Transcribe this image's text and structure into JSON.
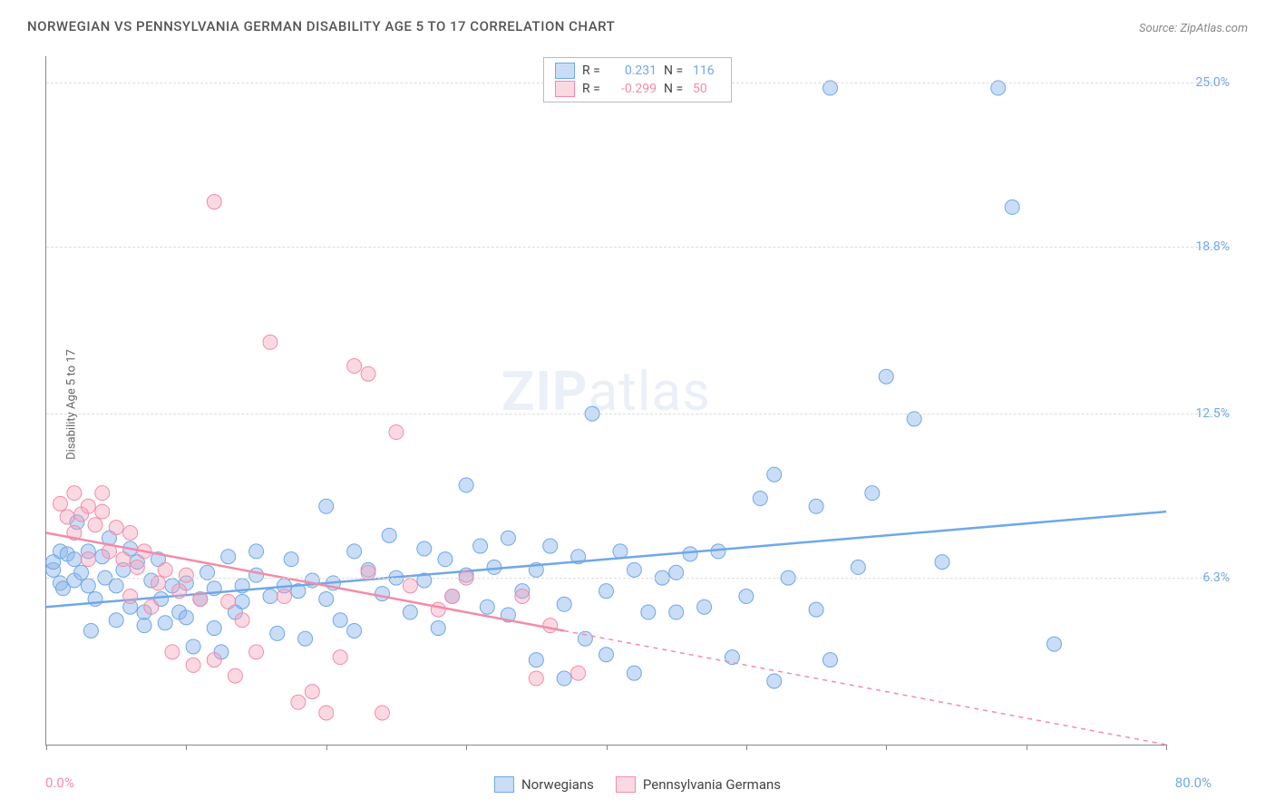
{
  "title": "NORWEGIAN VS PENNSYLVANIA GERMAN DISABILITY AGE 5 TO 17 CORRELATION CHART",
  "source_label": "Source:",
  "source_site": "ZipAtlas.com",
  "ylabel": "Disability Age 5 to 17",
  "watermark_bold": "ZIP",
  "watermark_rest": "atlas",
  "chart": {
    "type": "scatter",
    "background_color": "#ffffff",
    "grid_color": "#dddddd",
    "axis_color": "#888888",
    "xlim": [
      0,
      80
    ],
    "ylim": [
      0,
      26
    ],
    "xaxis_min_label": "0.0%",
    "xaxis_max_label": "80.0%",
    "xaxis_min_color": "#f48ba8",
    "xaxis_max_color": "#6fa8e8",
    "xticks": [
      0,
      10,
      20,
      30,
      40,
      50,
      60,
      70,
      80
    ],
    "yticks": [
      {
        "v": 6.3,
        "label": "6.3%"
      },
      {
        "v": 12.5,
        "label": "12.5%"
      },
      {
        "v": 18.8,
        "label": "18.8%"
      },
      {
        "v": 25.0,
        "label": "25.0%"
      }
    ],
    "ytick_color": "#6fa8e8",
    "series": [
      {
        "name": "Norwegians",
        "color_fill": "rgba(137,180,235,0.45)",
        "color_stroke": "#6fa8e8",
        "marker_radius": 8,
        "r_value": "0.231",
        "n_value": "116",
        "trend": {
          "x1": 0,
          "y1": 5.2,
          "x2": 80,
          "y2": 8.8,
          "solid_until_x": 80
        },
        "points": [
          {
            "x": 0.5,
            "y": 6.6
          },
          {
            "x": 0.5,
            "y": 6.9
          },
          {
            "x": 1,
            "y": 7.3
          },
          {
            "x": 1,
            "y": 6.1
          },
          {
            "x": 1.2,
            "y": 5.9
          },
          {
            "x": 1.5,
            "y": 7.2
          },
          {
            "x": 2,
            "y": 7.0
          },
          {
            "x": 2,
            "y": 6.2
          },
          {
            "x": 2.2,
            "y": 8.4
          },
          {
            "x": 2.5,
            "y": 6.5
          },
          {
            "x": 3,
            "y": 7.3
          },
          {
            "x": 3,
            "y": 6.0
          },
          {
            "x": 3.2,
            "y": 4.3
          },
          {
            "x": 3.5,
            "y": 5.5
          },
          {
            "x": 4,
            "y": 7.1
          },
          {
            "x": 4.2,
            "y": 6.3
          },
          {
            "x": 4.5,
            "y": 7.8
          },
          {
            "x": 5,
            "y": 6.0
          },
          {
            "x": 5,
            "y": 4.7
          },
          {
            "x": 5.5,
            "y": 6.6
          },
          {
            "x": 6,
            "y": 7.4
          },
          {
            "x": 6,
            "y": 5.2
          },
          {
            "x": 6.5,
            "y": 6.9
          },
          {
            "x": 7,
            "y": 4.5
          },
          {
            "x": 7,
            "y": 5.0
          },
          {
            "x": 7.5,
            "y": 6.2
          },
          {
            "x": 8,
            "y": 7.0
          },
          {
            "x": 8.2,
            "y": 5.5
          },
          {
            "x": 8.5,
            "y": 4.6
          },
          {
            "x": 9,
            "y": 6.0
          },
          {
            "x": 9.5,
            "y": 5.0
          },
          {
            "x": 10,
            "y": 6.1
          },
          {
            "x": 10,
            "y": 4.8
          },
          {
            "x": 10.5,
            "y": 3.7
          },
          {
            "x": 11,
            "y": 5.5
          },
          {
            "x": 11.5,
            "y": 6.5
          },
          {
            "x": 12,
            "y": 4.4
          },
          {
            "x": 12,
            "y": 5.9
          },
          {
            "x": 12.5,
            "y": 3.5
          },
          {
            "x": 13,
            "y": 7.1
          },
          {
            "x": 13.5,
            "y": 5.0
          },
          {
            "x": 14,
            "y": 6.0
          },
          {
            "x": 14,
            "y": 5.4
          },
          {
            "x": 15,
            "y": 6.4
          },
          {
            "x": 15,
            "y": 7.3
          },
          {
            "x": 16,
            "y": 5.6
          },
          {
            "x": 16.5,
            "y": 4.2
          },
          {
            "x": 17,
            "y": 6.0
          },
          {
            "x": 17.5,
            "y": 7.0
          },
          {
            "x": 18,
            "y": 5.8
          },
          {
            "x": 18.5,
            "y": 4.0
          },
          {
            "x": 19,
            "y": 6.2
          },
          {
            "x": 20,
            "y": 5.5
          },
          {
            "x": 20,
            "y": 9.0
          },
          {
            "x": 20.5,
            "y": 6.1
          },
          {
            "x": 21,
            "y": 4.7
          },
          {
            "x": 22,
            "y": 7.3
          },
          {
            "x": 22,
            "y": 4.3
          },
          {
            "x": 23,
            "y": 6.6
          },
          {
            "x": 24,
            "y": 5.7
          },
          {
            "x": 24.5,
            "y": 7.9
          },
          {
            "x": 25,
            "y": 6.3
          },
          {
            "x": 26,
            "y": 5.0
          },
          {
            "x": 27,
            "y": 6.2
          },
          {
            "x": 27,
            "y": 7.4
          },
          {
            "x": 28,
            "y": 4.4
          },
          {
            "x": 28.5,
            "y": 7.0
          },
          {
            "x": 29,
            "y": 5.6
          },
          {
            "x": 30,
            "y": 9.8
          },
          {
            "x": 30,
            "y": 6.4
          },
          {
            "x": 31,
            "y": 7.5
          },
          {
            "x": 31.5,
            "y": 5.2
          },
          {
            "x": 32,
            "y": 6.7
          },
          {
            "x": 33,
            "y": 4.9
          },
          {
            "x": 33,
            "y": 7.8
          },
          {
            "x": 34,
            "y": 5.8
          },
          {
            "x": 35,
            "y": 3.2
          },
          {
            "x": 35,
            "y": 6.6
          },
          {
            "x": 36,
            "y": 7.5
          },
          {
            "x": 37,
            "y": 2.5
          },
          {
            "x": 37,
            "y": 5.3
          },
          {
            "x": 38,
            "y": 7.1
          },
          {
            "x": 38.5,
            "y": 4.0
          },
          {
            "x": 39,
            "y": 12.5
          },
          {
            "x": 40,
            "y": 3.4
          },
          {
            "x": 40,
            "y": 5.8
          },
          {
            "x": 41,
            "y": 7.3
          },
          {
            "x": 42,
            "y": 2.7
          },
          {
            "x": 42,
            "y": 6.6
          },
          {
            "x": 43,
            "y": 5.0
          },
          {
            "x": 44,
            "y": 6.3
          },
          {
            "x": 45,
            "y": 5.0
          },
          {
            "x": 45,
            "y": 6.5
          },
          {
            "x": 46,
            "y": 7.2
          },
          {
            "x": 47,
            "y": 5.2
          },
          {
            "x": 48,
            "y": 7.3
          },
          {
            "x": 49,
            "y": 3.3
          },
          {
            "x": 50,
            "y": 5.6
          },
          {
            "x": 51,
            "y": 9.3
          },
          {
            "x": 52,
            "y": 10.2
          },
          {
            "x": 52,
            "y": 2.4
          },
          {
            "x": 53,
            "y": 6.3
          },
          {
            "x": 55,
            "y": 9.0
          },
          {
            "x": 55,
            "y": 5.1
          },
          {
            "x": 56,
            "y": 3.2
          },
          {
            "x": 56,
            "y": 24.8
          },
          {
            "x": 58,
            "y": 6.7
          },
          {
            "x": 59,
            "y": 9.5
          },
          {
            "x": 60,
            "y": 13.9
          },
          {
            "x": 62,
            "y": 12.3
          },
          {
            "x": 64,
            "y": 6.9
          },
          {
            "x": 68,
            "y": 24.8
          },
          {
            "x": 69,
            "y": 20.3
          },
          {
            "x": 72,
            "y": 3.8
          }
        ]
      },
      {
        "name": "Pennsylvania Germans",
        "color_fill": "rgba(245,160,185,0.4)",
        "color_stroke": "#f48ba8",
        "marker_radius": 8,
        "r_value": "-0.299",
        "n_value": "50",
        "trend": {
          "x1": 0,
          "y1": 8.0,
          "x2": 80,
          "y2": 0.0,
          "solid_until_x": 37
        },
        "points": [
          {
            "x": 1,
            "y": 9.1
          },
          {
            "x": 1.5,
            "y": 8.6
          },
          {
            "x": 2,
            "y": 9.5
          },
          {
            "x": 2,
            "y": 8.0
          },
          {
            "x": 2.5,
            "y": 8.7
          },
          {
            "x": 3,
            "y": 9.0
          },
          {
            "x": 3,
            "y": 7.0
          },
          {
            "x": 3.5,
            "y": 8.3
          },
          {
            "x": 4,
            "y": 9.5
          },
          {
            "x": 4,
            "y": 8.8
          },
          {
            "x": 4.5,
            "y": 7.3
          },
          {
            "x": 5,
            "y": 8.2
          },
          {
            "x": 5.5,
            "y": 7.0
          },
          {
            "x": 6,
            "y": 8.0
          },
          {
            "x": 6,
            "y": 5.6
          },
          {
            "x": 6.5,
            "y": 6.7
          },
          {
            "x": 7,
            "y": 7.3
          },
          {
            "x": 7.5,
            "y": 5.2
          },
          {
            "x": 8,
            "y": 6.1
          },
          {
            "x": 8.5,
            "y": 6.6
          },
          {
            "x": 9,
            "y": 3.5
          },
          {
            "x": 9.5,
            "y": 5.8
          },
          {
            "x": 10,
            "y": 6.4
          },
          {
            "x": 10.5,
            "y": 3.0
          },
          {
            "x": 11,
            "y": 5.5
          },
          {
            "x": 12,
            "y": 3.2
          },
          {
            "x": 12,
            "y": 20.5
          },
          {
            "x": 13,
            "y": 5.4
          },
          {
            "x": 13.5,
            "y": 2.6
          },
          {
            "x": 14,
            "y": 4.7
          },
          {
            "x": 15,
            "y": 3.5
          },
          {
            "x": 16,
            "y": 15.2
          },
          {
            "x": 17,
            "y": 5.6
          },
          {
            "x": 18,
            "y": 1.6
          },
          {
            "x": 19,
            "y": 2.0
          },
          {
            "x": 20,
            "y": 1.2
          },
          {
            "x": 21,
            "y": 3.3
          },
          {
            "x": 22,
            "y": 14.3
          },
          {
            "x": 23,
            "y": 14.0
          },
          {
            "x": 23,
            "y": 6.5
          },
          {
            "x": 24,
            "y": 1.2
          },
          {
            "x": 25,
            "y": 11.8
          },
          {
            "x": 26,
            "y": 6.0
          },
          {
            "x": 28,
            "y": 5.1
          },
          {
            "x": 29,
            "y": 5.6
          },
          {
            "x": 30,
            "y": 6.3
          },
          {
            "x": 34,
            "y": 5.6
          },
          {
            "x": 35,
            "y": 2.5
          },
          {
            "x": 36,
            "y": 4.5
          },
          {
            "x": 38,
            "y": 2.7
          }
        ]
      }
    ]
  },
  "bottom_legend": [
    {
      "label": "Norwegians",
      "fill": "rgba(137,180,235,0.45)",
      "stroke": "#6fa8e8"
    },
    {
      "label": "Pennsylvania Germans",
      "fill": "rgba(245,160,185,0.4)",
      "stroke": "#f48ba8"
    }
  ]
}
